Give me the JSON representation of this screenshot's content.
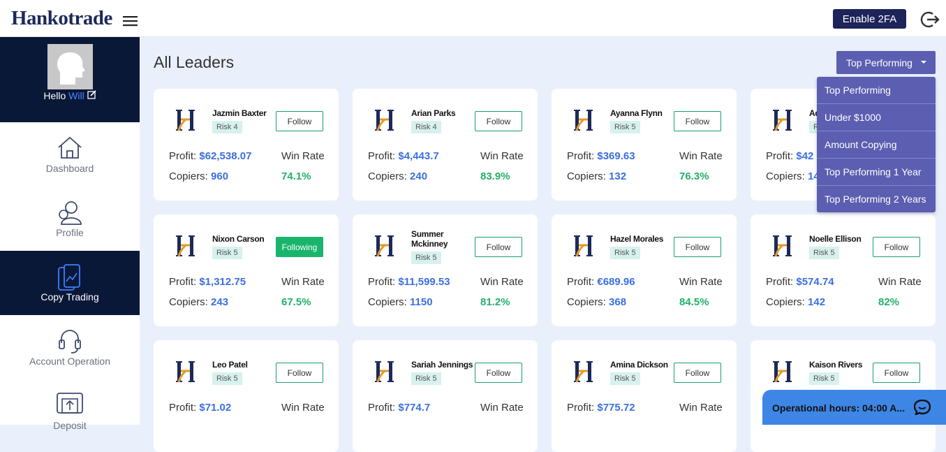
{
  "header": {
    "brand": "Hankotrade",
    "enable_2fa": "Enable 2FA"
  },
  "sidebar": {
    "greeting": "Hello",
    "user": "Will",
    "nav": [
      "Dashboard",
      "Profile",
      "Copy Trading",
      "Account Operation",
      "Deposit"
    ],
    "active": 2
  },
  "main": {
    "title": "All Leaders",
    "sort_button": "Top Performing",
    "sort_options": [
      "Top Performing",
      "Under $1000",
      "Amount Copying",
      "Top Performing 1 Year",
      "Top Performing 2 Years"
    ],
    "labels": {
      "profit": "Profit:",
      "copiers": "Copiers:",
      "win_rate": "Win Rate"
    },
    "leaders": [
      {
        "name": "Jazmin Baxter",
        "risk": "Risk 4",
        "action": "Follow",
        "profit": "$62,538.07",
        "copiers": "960",
        "win_rate": "74.1%"
      },
      {
        "name": "Arian Parks",
        "risk": "Risk 4",
        "action": "Follow",
        "profit": "$4,443.7",
        "copiers": "240",
        "win_rate": "83.9%"
      },
      {
        "name": "Ayanna Flynn",
        "risk": "Risk 5",
        "action": "Follow",
        "profit": "$369.63",
        "copiers": "132",
        "win_rate": "76.3%"
      },
      {
        "name": "Ad",
        "risk": "R",
        "profit": "$42",
        "copiers": "14"
      },
      {
        "name": "Nixon Carson",
        "risk": "Risk 5",
        "action": "Following",
        "profit": "$1,312.75",
        "copiers": "243",
        "win_rate": "67.5%"
      },
      {
        "name": "Summer Mckinney",
        "risk": "Risk 5",
        "action": "Follow",
        "profit": "$11,599.53",
        "copiers": "1150",
        "win_rate": "81.2%"
      },
      {
        "name": "Hazel Morales",
        "risk": "Risk 5",
        "action": "Follow",
        "profit": "€689.96",
        "copiers": "368",
        "win_rate": "84.5%"
      },
      {
        "name": "Noelle Ellison",
        "risk": "Risk 5",
        "action": "Follow",
        "profit": "$574.74",
        "copiers": "142",
        "win_rate": "82%"
      },
      {
        "name": "Leo Patel",
        "risk": "Risk 5",
        "action": "Follow",
        "profit": "$71.02"
      },
      {
        "name": "Sariah Jennings",
        "risk": "Risk 5",
        "action": "Follow",
        "profit": "$774.7"
      },
      {
        "name": "Amina Dickson",
        "risk": "Risk 5",
        "action": "Follow",
        "profit": "$775.72"
      },
      {
        "name": "Kaison Rivers",
        "risk": "Risk 5",
        "action": "Follow"
      }
    ]
  },
  "chat": {
    "text": "Operational hours: 04:00 A..."
  }
}
